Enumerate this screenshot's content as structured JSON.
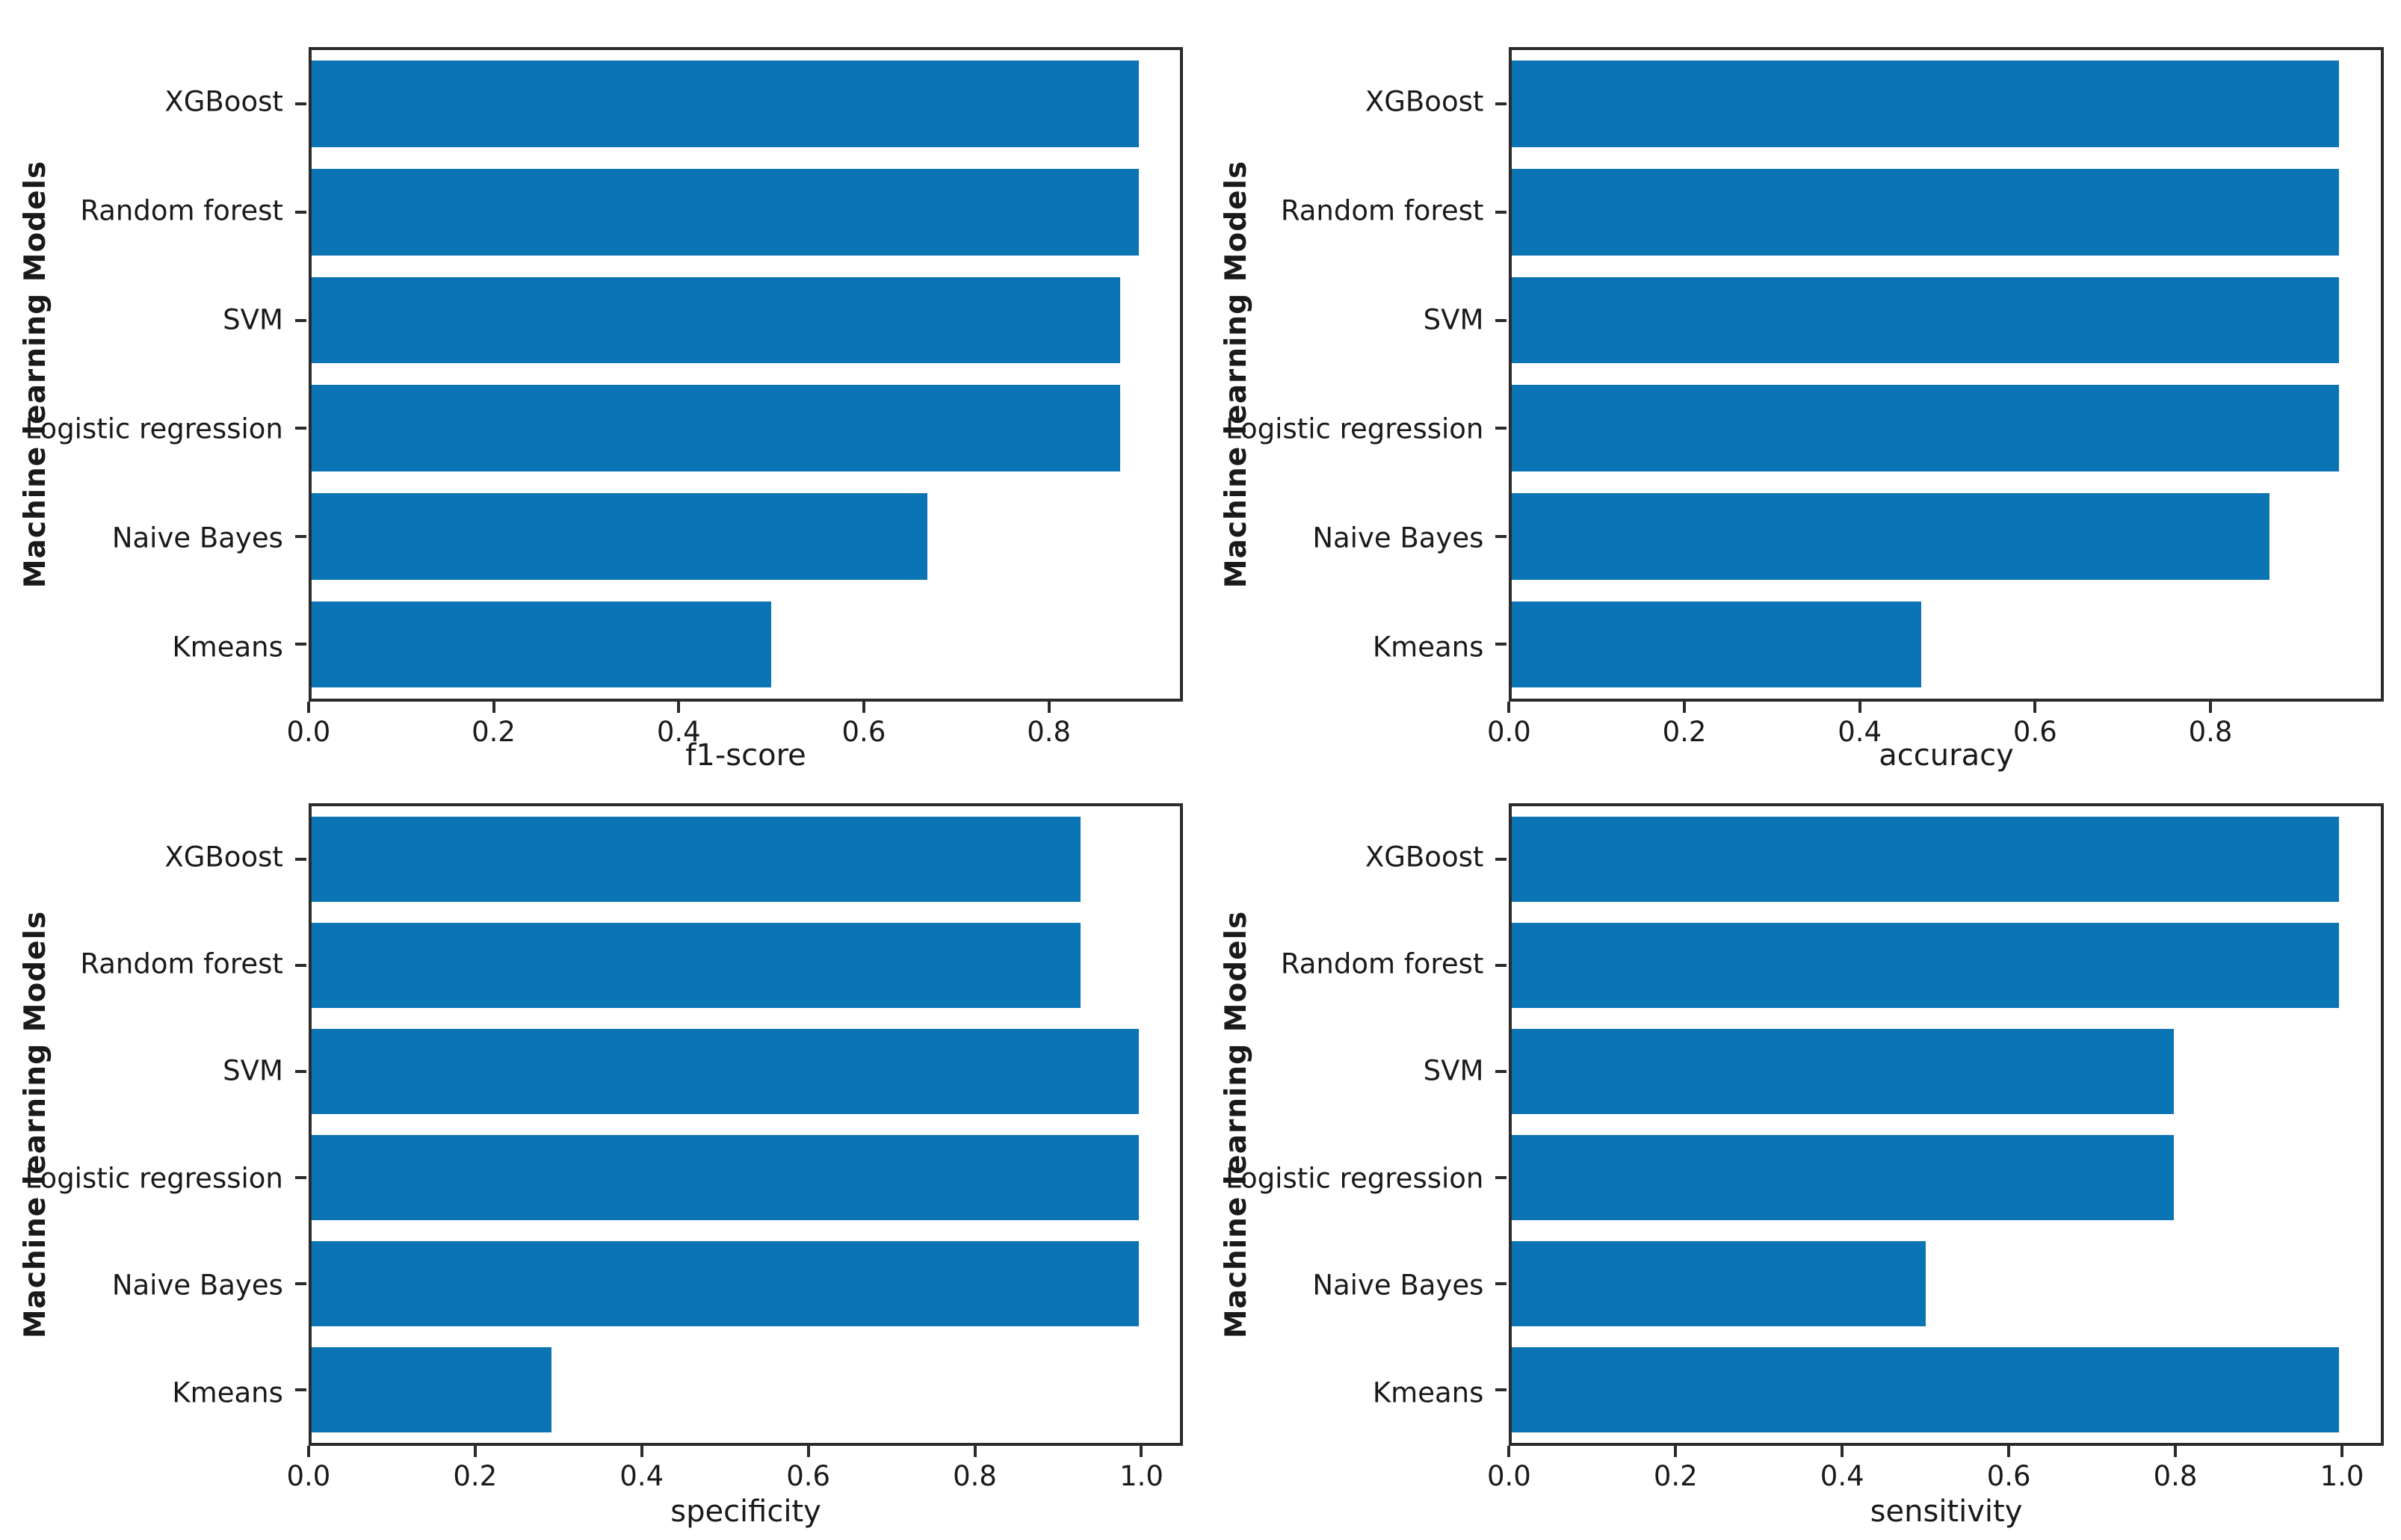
{
  "figure": {
    "background_color": "#ffffff",
    "bar_color": "#0b74b4",
    "spine_color": "#2b2b2b",
    "text_color": "#1a1a1a"
  },
  "chart_data": [
    {
      "type": "bar",
      "orientation": "horizontal",
      "title": "",
      "xlabel": "f1-score",
      "ylabel": "Machine learning Models",
      "categories": [
        "XGBoost",
        "Random forest",
        "SVM",
        "Logistic regression",
        "Naive Bayes",
        "Kmeans"
      ],
      "values": [
        0.9,
        0.9,
        0.88,
        0.88,
        0.67,
        0.5
      ],
      "xticks": [
        0.0,
        0.2,
        0.4,
        0.6,
        0.8
      ],
      "xlim": [
        0,
        0.945
      ],
      "grid": false,
      "legend": null
    },
    {
      "type": "bar",
      "orientation": "horizontal",
      "title": "",
      "xlabel": "accuracy",
      "ylabel": "Machine learning Models",
      "categories": [
        "XGBoost",
        "Random forest",
        "SVM",
        "Logistic regression",
        "Naive Bayes",
        "Kmeans"
      ],
      "values": [
        0.95,
        0.95,
        0.95,
        0.95,
        0.87,
        0.47
      ],
      "xticks": [
        0.0,
        0.2,
        0.4,
        0.6,
        0.8
      ],
      "xlim": [
        0,
        0.9975
      ],
      "grid": false,
      "legend": null
    },
    {
      "type": "bar",
      "orientation": "horizontal",
      "title": "",
      "xlabel": "specificity",
      "ylabel": "Machine learning Models",
      "categories": [
        "XGBoost",
        "Random forest",
        "SVM",
        "Logistic regression",
        "Naive Bayes",
        "Kmeans"
      ],
      "values": [
        0.93,
        0.93,
        1.0,
        1.0,
        1.0,
        0.29
      ],
      "xticks": [
        0.0,
        0.2,
        0.4,
        0.6,
        0.8,
        1.0
      ],
      "xlim": [
        0,
        1.05
      ],
      "grid": false,
      "legend": null
    },
    {
      "type": "bar",
      "orientation": "horizontal",
      "title": "",
      "xlabel": "sensitivity",
      "ylabel": "Machine learning Models",
      "categories": [
        "XGBoost",
        "Random forest",
        "SVM",
        "Logistic regression",
        "Naive Bayes",
        "Kmeans"
      ],
      "values": [
        1.0,
        1.0,
        0.8,
        0.8,
        0.5,
        1.0
      ],
      "xticks": [
        0.0,
        0.2,
        0.4,
        0.6,
        0.8,
        1.0
      ],
      "xlim": [
        0,
        1.05
      ],
      "grid": false,
      "legend": null
    }
  ]
}
